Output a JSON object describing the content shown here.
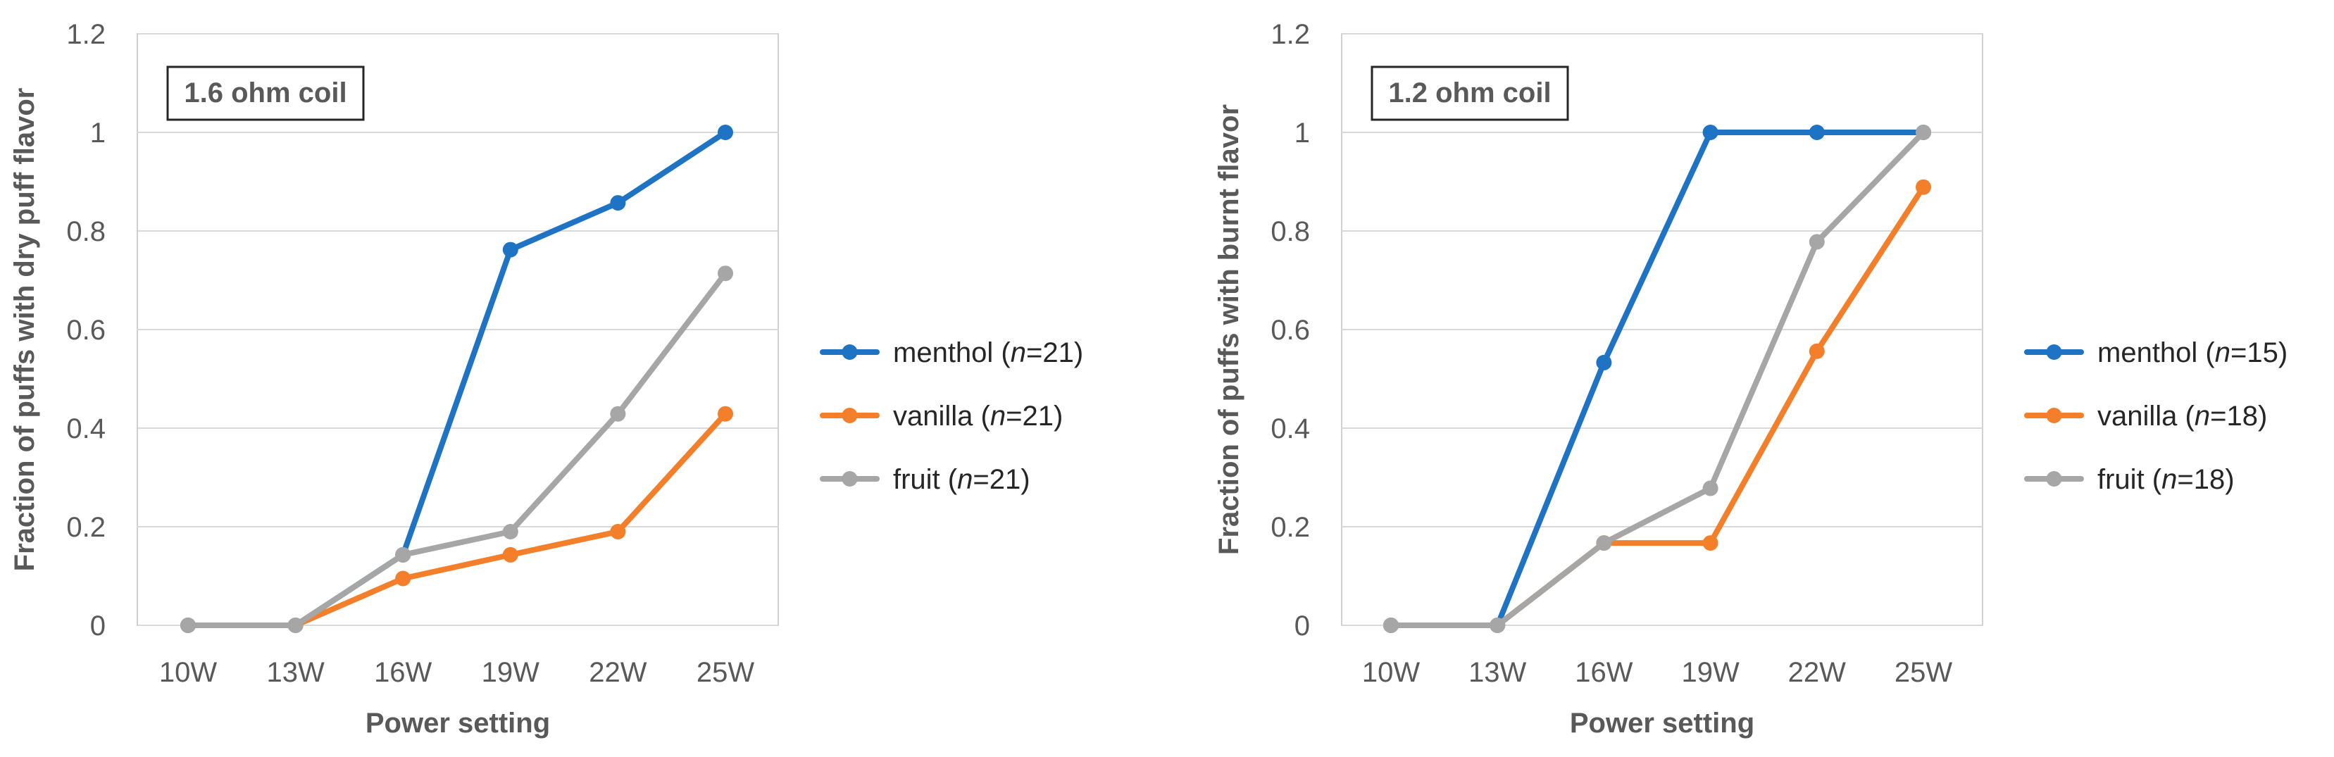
{
  "chart_data": [
    {
      "type": "line",
      "annotation": "1.6 ohm coil",
      "xlabel": "Power setting",
      "ylabel": "Fraction of  puffs with dry puff flavor",
      "categories": [
        "10W",
        "13W",
        "16W",
        "19W",
        "22W",
        "25W"
      ],
      "ylim": [
        0,
        1.2
      ],
      "yticks": [
        "0",
        "0.2",
        "0.4",
        "0.6",
        "0.8",
        "1",
        "1.2"
      ],
      "grid": true,
      "legend_position": "right",
      "series": [
        {
          "name": "menthol (n=21)",
          "label": "menthol",
          "n_text": "=21",
          "color": "#1f73c4",
          "values": [
            0,
            0,
            0.143,
            0.762,
            0.857,
            1.0
          ]
        },
        {
          "name": "vanilla (n=21)",
          "label": "vanilla",
          "n_text": "=21",
          "color": "#f47f2a",
          "values": [
            0,
            0,
            0.095,
            0.143,
            0.19,
            0.429
          ]
        },
        {
          "name": "fruit (n=21)",
          "label": "fruit",
          "n_text": "=21",
          "color": "#a6a6a6",
          "values": [
            0,
            0,
            0.143,
            0.19,
            0.429,
            0.714
          ]
        }
      ]
    },
    {
      "type": "line",
      "annotation": "1.2 ohm coil",
      "xlabel": "Power setting",
      "ylabel": "Fraction of  puffs with burnt flavor",
      "categories": [
        "10W",
        "13W",
        "16W",
        "19W",
        "22W",
        "25W"
      ],
      "ylim": [
        0,
        1.2
      ],
      "yticks": [
        "0",
        "0.2",
        "0.4",
        "0.6",
        "0.8",
        "1",
        "1.2"
      ],
      "grid": true,
      "legend_position": "right",
      "series": [
        {
          "name": "menthol (n=15)",
          "label": "menthol",
          "n_text": "=15",
          "color": "#1f73c4",
          "values": [
            0,
            0,
            0.533,
            1.0,
            1.0,
            1.0
          ]
        },
        {
          "name": "vanilla (n=18)",
          "label": "vanilla",
          "n_text": "=18",
          "color": "#f47f2a",
          "values": [
            0,
            0,
            0.167,
            0.167,
            0.556,
            0.889
          ]
        },
        {
          "name": "fruit (n=18)",
          "label": "fruit",
          "n_text": "=18",
          "color": "#a6a6a6",
          "values": [
            0,
            0,
            0.167,
            0.278,
            0.778,
            1.0
          ]
        }
      ]
    }
  ]
}
